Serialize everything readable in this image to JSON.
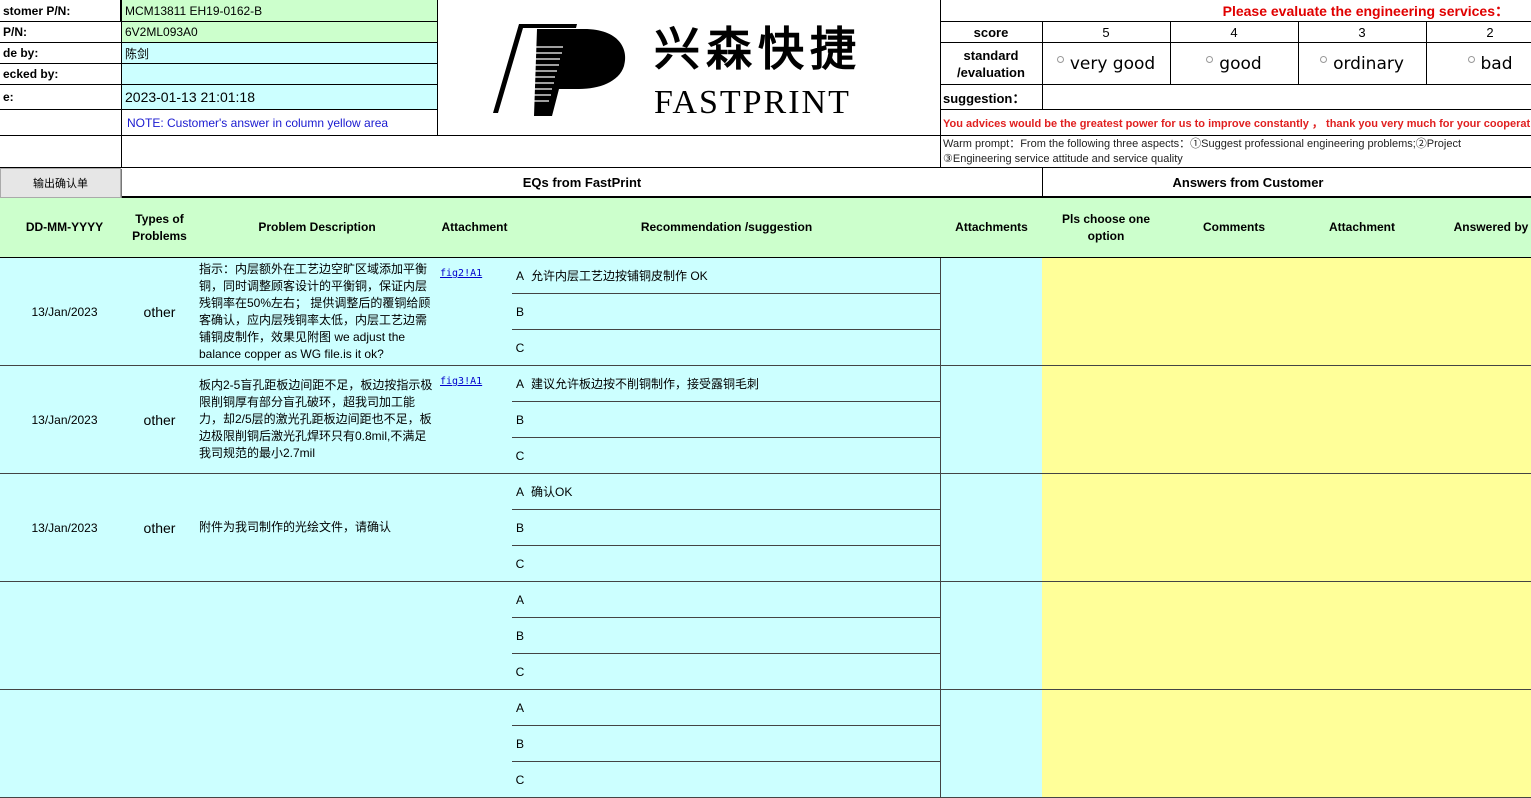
{
  "header": {
    "labels": [
      "stomer P/N:",
      "P/N:",
      "de by:",
      "ecked by:",
      "e:"
    ],
    "values": [
      "MCM13811 EH19-0162-B",
      "6V2ML093A0",
      "陈剑",
      "",
      "2023-01-13 21:01:18"
    ],
    "note": "NOTE: Customer's  answer in column yellow area",
    "export_button": "输出确认单",
    "logo_cn": "兴森快捷",
    "logo_en": "FASTPRINT"
  },
  "evaluation": {
    "title": "Please evaluate the engineering services：",
    "score_label": "score",
    "scores": [
      "5",
      "4",
      "3",
      "2"
    ],
    "standard_label": "standard /evaluation",
    "options": [
      "very good",
      "good",
      "ordinary",
      "bad"
    ],
    "suggestion_label": "suggestion：",
    "advice": "You advices would be the greatest power for us to improve constantly ，  thank you very much for your cooperation",
    "warm_prompt_1": "Warm prompt：From the following three aspects：①Suggest professional engineering problems;②Project",
    "warm_prompt_2": "③Engineering service attitude and service quality"
  },
  "sections": {
    "eqs": "EQs from FastPrint",
    "answers": "Answers from Customer"
  },
  "columns": [
    "DD-MM-YYYY",
    "Types of Problems",
    "Problem Description",
    "Attachment",
    "Recommendation /suggestion",
    "Attachments",
    "Pls choose one option",
    "Comments",
    "Attachment",
    "Answered by"
  ],
  "options_letters": [
    "A",
    "B",
    "C"
  ],
  "rows": [
    {
      "date": "13/Jan/2023",
      "type": "other",
      "problem": "指示：内层额外在工艺边空旷区域添加平衡铜，同时调整顾客设计的平衡铜，保证内层残铜率在50%左右； 提供调整后的覆铜给顾客确认，应内层残铜率太低，内层工艺边需铺铜皮制作，效果见附图 we adjust the balance copper as WG file.is it ok?",
      "attachment": "fig2!A1",
      "recs": [
        "允许内层工艺边按铺铜皮制作 OK",
        "",
        ""
      ]
    },
    {
      "date": "13/Jan/2023",
      "type": "other",
      "problem": "板内2-5盲孔距板边间距不足，板边按指示极限削铜厚有部分盲孔破环，超我司加工能力，却2/5层的激光孔距板边间距也不足，板边极限削铜后激光孔焊环只有0.8mil,不满足我司规范的最小2.7mil",
      "attachment": "fig3!A1",
      "recs": [
        " 建议允许板边按不削铜制作，接受露铜毛刺",
        "",
        ""
      ]
    },
    {
      "date": "13/Jan/2023",
      "type": "other",
      "problem": "附件为我司制作的光绘文件，请确认",
      "attachment": "",
      "recs": [
        "确认OK",
        "",
        ""
      ]
    },
    {
      "date": "",
      "type": "",
      "problem": "",
      "attachment": "",
      "recs": [
        "",
        "",
        ""
      ]
    },
    {
      "date": "",
      "type": "",
      "problem": "",
      "attachment": "",
      "recs": [
        "",
        "",
        ""
      ]
    }
  ]
}
